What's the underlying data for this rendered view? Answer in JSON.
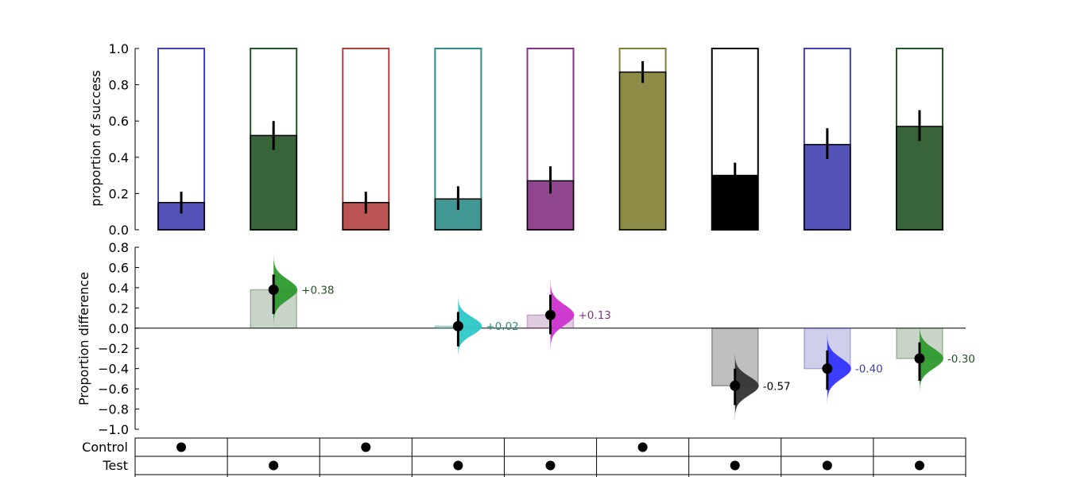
{
  "chart_data": [
    {
      "type": "bar",
      "ylabel": "proportion of success",
      "ylim": [
        0,
        1
      ],
      "yticks": [
        "0.0",
        "0.2",
        "0.4",
        "0.6",
        "0.8",
        "1.0"
      ],
      "grid": false,
      "bars": [
        {
          "value": 0.15,
          "ci": [
            0.09,
            0.21
          ],
          "color": "#4040b0"
        },
        {
          "value": 0.52,
          "ci": [
            0.44,
            0.6
          ],
          "color": "#245224"
        },
        {
          "value": 0.15,
          "ci": [
            0.09,
            0.21
          ],
          "color": "#b34040"
        },
        {
          "value": 0.17,
          "ci": [
            0.11,
            0.24
          ],
          "color": "#2e8b87"
        },
        {
          "value": 0.27,
          "ci": [
            0.2,
            0.35
          ],
          "color": "#843384"
        },
        {
          "value": 0.87,
          "ci": [
            0.81,
            0.93
          ],
          "color": "#808033"
        },
        {
          "value": 0.3,
          "ci": [
            0.25,
            0.37
          ],
          "color": "#000000"
        },
        {
          "value": 0.47,
          "ci": [
            0.39,
            0.56
          ],
          "color": "#4040b0"
        },
        {
          "value": 0.57,
          "ci": [
            0.49,
            0.66
          ],
          "color": "#245224"
        }
      ]
    },
    {
      "type": "scatter",
      "ylabel": "Proportion difference",
      "ylim": [
        -1.0,
        0.8
      ],
      "yticks": [
        "−1.0",
        "−0.8",
        "−0.6",
        "−0.4",
        "−0.2",
        "0.0",
        "0.2",
        "0.4",
        "0.6",
        "0.8"
      ],
      "grid": false,
      "points": [
        {
          "col": 1,
          "value": 0.38,
          "ci": [
            0.14,
            0.53
          ],
          "label": "+0.38",
          "color": "#2e9a2e",
          "label_color": "#245224",
          "rect_color": "#245224"
        },
        {
          "col": 3,
          "value": 0.02,
          "ci": [
            -0.18,
            0.16
          ],
          "label": "+0.02",
          "color": "#2ec7c7",
          "label_color": "#2e8b87",
          "rect_color": "#2e8b87"
        },
        {
          "col": 4,
          "value": 0.13,
          "ci": [
            -0.06,
            0.33
          ],
          "label": "+0.13",
          "color": "#cc33cc",
          "label_color": "#843384",
          "rect_color": "#843384"
        },
        {
          "col": 6,
          "value": -0.57,
          "ci": [
            -0.76,
            -0.4
          ],
          "label": "-0.57",
          "color": "#333333",
          "label_color": "#000000",
          "rect_color": "#000000"
        },
        {
          "col": 7,
          "value": -0.4,
          "ci": [
            -0.61,
            -0.22
          ],
          "label": "-0.40",
          "color": "#3333ff",
          "label_color": "#4040b0",
          "rect_color": "#4040b0"
        },
        {
          "col": 8,
          "value": -0.3,
          "ci": [
            -0.52,
            -0.14
          ],
          "label": "-0.30",
          "color": "#2e9a2e",
          "label_color": "#245224",
          "rect_color": "#245224"
        }
      ]
    },
    {
      "type": "table",
      "rows": [
        {
          "label": "Control",
          "marks": [
            0,
            2,
            5
          ]
        },
        {
          "label": "Test",
          "marks": [
            1,
            3,
            4,
            6,
            7,
            8
          ]
        }
      ]
    }
  ]
}
